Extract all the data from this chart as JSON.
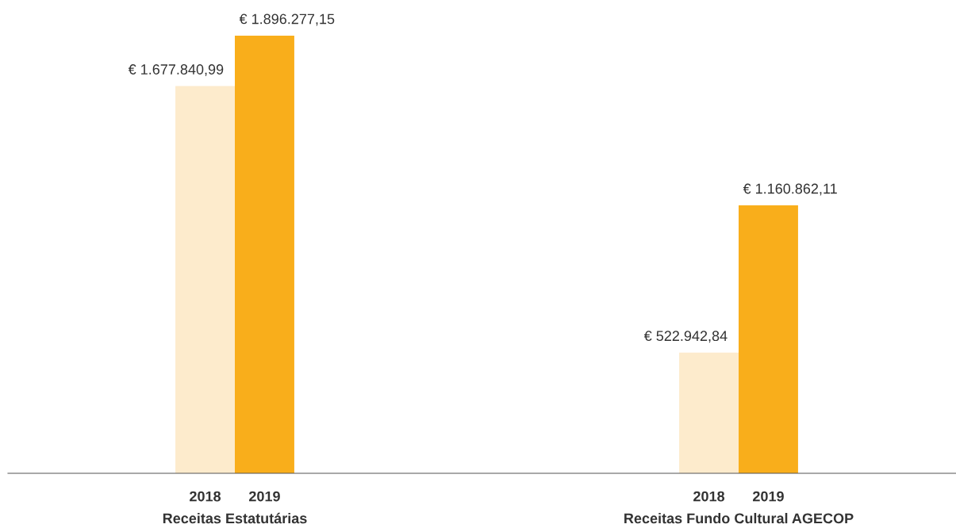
{
  "chart_data": {
    "type": "bar",
    "categories": [
      "Receitas Estatutárias",
      "Receitas Fundo Cultural AGECOP"
    ],
    "series": [
      {
        "name": "2018",
        "color": "#fdebcc",
        "values": [
          1677840.99,
          522942.84
        ],
        "value_labels": [
          "€ 1.677.840,99",
          "€ 522.942,84"
        ]
      },
      {
        "name": "2019",
        "color": "#f9ae1b",
        "values": [
          1896277.15,
          1160862.11
        ],
        "value_labels": [
          "€ 1.896.277,15",
          "€ 1.160.862,11"
        ]
      }
    ],
    "legend": false,
    "grid": false
  }
}
